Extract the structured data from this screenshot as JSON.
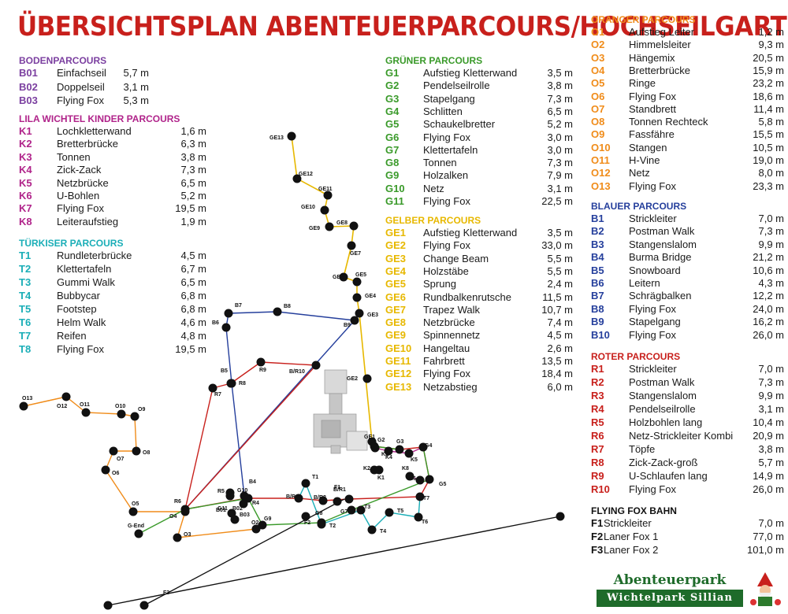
{
  "title": "ÜBERSICHTSPLAN ABENTEUERPARCOURS/HOCHSEILGARTEN",
  "colors": {
    "title": "#c8201c",
    "boden": "#7b3fa0",
    "lila": "#b0238a",
    "tuerkis": "#1aaeb7",
    "gruen": "#3a9a2a",
    "gelb": "#e7b800",
    "orange": "#f08c1a",
    "blau": "#253f9c",
    "rot": "#c8201c",
    "fox": "#111111"
  },
  "sections": [
    {
      "id": "boden",
      "title": "BODENPARCOURS",
      "items": [
        [
          "B01",
          "Einfachseil",
          "5,7 m"
        ],
        [
          "B02",
          "Doppelseil",
          "3,1 m"
        ],
        [
          "B03",
          "Flying Fox",
          "5,3 m"
        ]
      ]
    },
    {
      "id": "lila",
      "title": "LILA WICHTEL KINDER PARCOURS",
      "items": [
        [
          "K1",
          "Lochkletterwand",
          "1,6 m"
        ],
        [
          "K2",
          "Bretterbrücke",
          "6,3 m"
        ],
        [
          "K3",
          "Tonnen",
          "3,8 m"
        ],
        [
          "K4",
          "Zick-Zack",
          "7,3 m"
        ],
        [
          "K5",
          "Netzbrücke",
          "6,5 m"
        ],
        [
          "K6",
          "U-Bohlen",
          "5,2 m"
        ],
        [
          "K7",
          "Flying Fox",
          "19,5 m"
        ],
        [
          "K8",
          "Leiteraufstieg",
          "1,9 m"
        ]
      ]
    },
    {
      "id": "tuerkis",
      "title": "TÜRKISER PARCOURS",
      "items": [
        [
          "T1",
          "Rundleterbrücke",
          "4,5 m"
        ],
        [
          "T2",
          "Klettertafeln",
          "6,7 m"
        ],
        [
          "T3",
          "Gummi Walk",
          "6,5 m"
        ],
        [
          "T4",
          "Bubbycar",
          "6,8 m"
        ],
        [
          "T5",
          "Footstep",
          "6,8 m"
        ],
        [
          "T6",
          "Helm Walk",
          "4,6 m"
        ],
        [
          "T7",
          "Reifen",
          "4,8 m"
        ],
        [
          "T8",
          "Flying Fox",
          "19,5 m"
        ]
      ]
    },
    {
      "id": "gruen",
      "title": "GRÜNER PARCOURS",
      "items": [
        [
          "G1",
          "Aufstieg Kletterwand",
          "3,5 m"
        ],
        [
          "G2",
          "Pendelseilrolle",
          "3,8 m"
        ],
        [
          "G3",
          "Stapelgang",
          "7,3 m"
        ],
        [
          "G4",
          "Schlitten",
          "6,5 m"
        ],
        [
          "G5",
          "Schaukelbretter",
          "5,2 m"
        ],
        [
          "G6",
          "Flying Fox",
          "3,0 m"
        ],
        [
          "G7",
          "Klettertafeln",
          "3,0 m"
        ],
        [
          "G8",
          "Tonnen",
          "7,3 m"
        ],
        [
          "G9",
          "Holzalken",
          "7,9 m"
        ],
        [
          "G10",
          "Netz",
          "3,1 m"
        ],
        [
          "G11",
          "Flying Fox",
          "22,5 m"
        ]
      ]
    },
    {
      "id": "gelb",
      "title": "GELBER PARCOURS",
      "items": [
        [
          "GE1",
          "Aufstieg Kletterwand",
          "3,5 m"
        ],
        [
          "GE2",
          "Flying Fox",
          "33,0 m"
        ],
        [
          "GE3",
          "Change Beam",
          "5,5 m"
        ],
        [
          "GE4",
          "Holzstäbe",
          "5,5 m"
        ],
        [
          "GE5",
          "Sprung",
          "2,4 m"
        ],
        [
          "GE6",
          "Rundbalkenrutsche",
          "11,5 m"
        ],
        [
          "GE7",
          "Trapez Walk",
          "10,7 m"
        ],
        [
          "GE8",
          "Netzbrücke",
          "7,4 m"
        ],
        [
          "GE9",
          "Spinnennetz",
          "4,5 m"
        ],
        [
          "GE10",
          "Hangeltau",
          "2,6 m"
        ],
        [
          "GE11",
          "Fahrbrett",
          "13,5 m"
        ],
        [
          "GE12",
          "Flying Fox",
          "18,4 m"
        ],
        [
          "GE13",
          "Netzabstieg",
          "6,0 m"
        ]
      ]
    },
    {
      "id": "orange",
      "title": "ORANGER PARCOURS",
      "items": [
        [
          "O1",
          "Aufstieg Leiter",
          "1,2 m"
        ],
        [
          "O2",
          "Himmelsleiter",
          "9,3 m"
        ],
        [
          "O3",
          "Hängemix",
          "20,5 m"
        ],
        [
          "O4",
          "Bretterbrücke",
          "15,9 m"
        ],
        [
          "O5",
          "Ringe",
          "23,2 m"
        ],
        [
          "O6",
          "Flying Fox",
          "18,6 m"
        ],
        [
          "O7",
          "Standbrett",
          "11,4 m"
        ],
        [
          "O8",
          "Tonnen Rechteck",
          "5,8 m"
        ],
        [
          "O9",
          "Fassfähre",
          "15,5 m"
        ],
        [
          "O10",
          "Stangen",
          "10,5 m"
        ],
        [
          "O11",
          "H-Vine",
          "19,0 m"
        ],
        [
          "O12",
          "Netz",
          "8,0 m"
        ],
        [
          "O13",
          "Flying Fox",
          "23,3 m"
        ]
      ]
    },
    {
      "id": "blau",
      "title": "BLAUER PARCOURS",
      "items": [
        [
          "B1",
          "Strickleiter",
          "7,0 m"
        ],
        [
          "B2",
          "Postman Walk",
          "7,3 m"
        ],
        [
          "B3",
          "Stangenslalom",
          "9,9 m"
        ],
        [
          "B4",
          "Burma Bridge",
          "21,2 m"
        ],
        [
          "B5",
          "Snowboard",
          "10,6 m"
        ],
        [
          "B6",
          "Leitern",
          "4,3 m"
        ],
        [
          "B7",
          "Schrägbalken",
          "12,2 m"
        ],
        [
          "B8",
          "Flying Fox",
          "24,0 m"
        ],
        [
          "B9",
          "Stapelgang",
          "16,2 m"
        ],
        [
          "B10",
          "Flying Fox",
          "26,0 m"
        ]
      ]
    },
    {
      "id": "rot",
      "title": "ROTER PARCOURS",
      "items": [
        [
          "R1",
          "Strickleiter",
          "7,0 m"
        ],
        [
          "R2",
          "Postman Walk",
          "7,3 m"
        ],
        [
          "R3",
          "Stangenslalom",
          "9,9 m"
        ],
        [
          "R4",
          "Pendelseilrolle",
          "3,1 m"
        ],
        [
          "R5",
          "Holzbohlen lang",
          "10,4 m"
        ],
        [
          "R6",
          "Netz-Strickleiter Kombi",
          "20,9 m"
        ],
        [
          "R7",
          "Töpfe",
          "3,8 m"
        ],
        [
          "R8",
          "Zick-Zack-groß",
          "5,7 m"
        ],
        [
          "R9",
          "U-Schlaufen lang",
          "14,9 m"
        ],
        [
          "R10",
          "Flying Fox",
          "26,0 m"
        ]
      ]
    },
    {
      "id": "fox",
      "title": "FLYING FOX BAHN",
      "items": [
        [
          "F1",
          "Strickleiter",
          "7,0 m"
        ],
        [
          "F2",
          "Laner Fox 1",
          "77,0 m"
        ],
        [
          "F3",
          "Laner Fox 2",
          "101,0 m"
        ]
      ]
    }
  ],
  "map_labels": [
    "GE13",
    "GE12",
    "GE11",
    "GE10",
    "GE9",
    "GE8",
    "GE7",
    "GE6",
    "GE5",
    "GE4",
    "GE3",
    "GE2",
    "GE1",
    "B7",
    "B8",
    "B6",
    "B9",
    "B5",
    "R9",
    "B/R10",
    "R8",
    "R7",
    "O13",
    "O12",
    "O11",
    "O10",
    "O9",
    "O8",
    "O7",
    "O6",
    "O5",
    "R6",
    "O4",
    "G-End",
    "O3",
    "O2",
    "G9",
    "B4",
    "R5",
    "G10",
    "R4",
    "G11",
    "B02",
    "B01",
    "B03",
    "B/R3",
    "T1",
    "B/R2",
    "F1",
    "B/R1",
    "F2",
    "G8",
    "T2",
    "G7",
    "T3",
    "T4",
    "T5",
    "T6",
    "T7",
    "K6",
    "K8",
    "K5",
    "G5",
    "G4",
    "G3",
    "K4",
    "K3",
    "G2",
    "K2",
    "K1",
    "F3"
  ],
  "logo": {
    "line1": "Abenteuerpark",
    "line2": "Wichtelpark Sillian"
  }
}
